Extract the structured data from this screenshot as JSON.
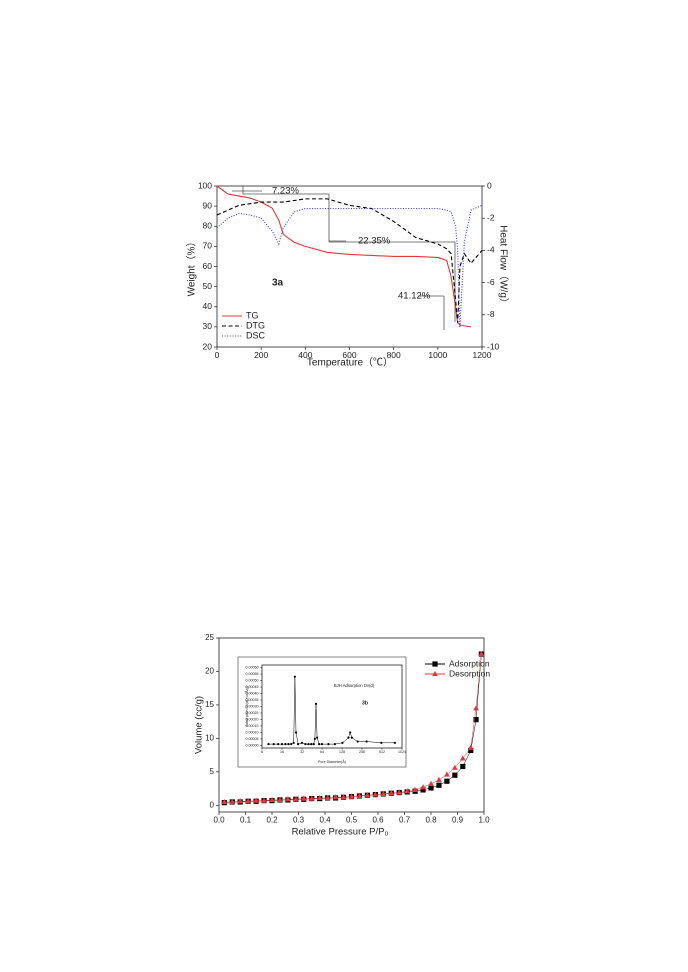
{
  "chart_data": [
    {
      "type": "line",
      "x_label": "Temperature（℃）",
      "y_label": "Weight（%）",
      "y2_label": "Heat Flow（W/g）",
      "panel_label": "3a",
      "annotations": [
        "7.23%",
        "22.35%",
        "41.12%"
      ],
      "xlim": [
        0,
        1200
      ],
      "xticks": [
        0,
        200,
        400,
        600,
        800,
        1000,
        1200
      ],
      "ylim": [
        20,
        100
      ],
      "yticks": [
        20,
        30,
        40,
        50,
        60,
        70,
        80,
        90,
        100
      ],
      "y2lim": [
        -10,
        0
      ],
      "y2ticks": [
        0,
        -2,
        -4,
        -6,
        -8,
        -10
      ],
      "legend": "lower left",
      "x": [
        0,
        50,
        100,
        150,
        200,
        250,
        280,
        300,
        350,
        400,
        500,
        600,
        700,
        800,
        900,
        1000,
        1040,
        1060,
        1080,
        1090,
        1100,
        1120,
        1150,
        1200
      ],
      "series": [
        {
          "name": "TG",
          "color": "#e8373a",
          "dash": "solid",
          "values": [
            100,
            96,
            95,
            94,
            92,
            89,
            83,
            76,
            72,
            70,
            67,
            66,
            65.5,
            65,
            65,
            64.5,
            63,
            55,
            40,
            32,
            31,
            30.5,
            30,
            null
          ]
        },
        {
          "name": "DTG",
          "color": "#000000",
          "dash": "dashed",
          "axis": "y2",
          "values": [
            -1.8,
            -1.5,
            -1.2,
            -1.1,
            -1.0,
            -1.0,
            -1.0,
            -1.0,
            -0.9,
            -0.8,
            -0.8,
            -1.2,
            -1.4,
            -2.2,
            -3.2,
            -3.6,
            -3.9,
            -4.2,
            -7,
            -8.5,
            -5,
            -4.2,
            -4.8,
            -4
          ]
        },
        {
          "name": "DSC",
          "color": "#3a3aff",
          "dash": "dotted",
          "axis": "y2",
          "values": [
            -2.6,
            -2.0,
            -1.7,
            -1.8,
            -2.0,
            -2.8,
            -3.6,
            -2.6,
            -1.6,
            -1.4,
            -1.4,
            -1.4,
            -1.4,
            -1.4,
            -1.4,
            -1.4,
            -1.5,
            -1.6,
            -2.5,
            -4,
            -8.8,
            -3.5,
            -1.5,
            -1.2
          ]
        }
      ]
    },
    {
      "type": "scatter",
      "x_label": "Relative Pressure  P/P₀",
      "y_label": "Volume (cc/g)",
      "xlim": [
        0,
        1
      ],
      "xticks": [
        {
          "value": 0,
          "label": "0.0"
        },
        0.1,
        0.2,
        0.3,
        0.4,
        0.5,
        0.6,
        0.7,
        0.8,
        0.9,
        {
          "value": 1,
          "label": "1.0"
        }
      ],
      "ylim": [
        -1,
        25
      ],
      "yticks": [
        0,
        5,
        10,
        15,
        20,
        25
      ],
      "legend": "upper right",
      "x": [
        0.02,
        0.05,
        0.08,
        0.11,
        0.14,
        0.17,
        0.2,
        0.23,
        0.26,
        0.29,
        0.32,
        0.35,
        0.38,
        0.41,
        0.44,
        0.47,
        0.5,
        0.53,
        0.56,
        0.59,
        0.62,
        0.65,
        0.68,
        0.71,
        0.74,
        0.77,
        0.8,
        0.83,
        0.86,
        0.89,
        0.92,
        0.95,
        0.97,
        0.99
      ],
      "series": [
        {
          "name": "Adsorption",
          "color": "#000000",
          "marker": "square",
          "values": [
            0.4,
            0.5,
            0.5,
            0.6,
            0.6,
            0.7,
            0.7,
            0.8,
            0.8,
            0.9,
            0.9,
            1.0,
            1.0,
            1.1,
            1.1,
            1.2,
            1.3,
            1.4,
            1.5,
            1.6,
            1.7,
            1.8,
            1.9,
            2.0,
            2.1,
            2.3,
            2.6,
            3.0,
            3.6,
            4.5,
            5.8,
            8.2,
            12.8,
            22.6
          ]
        },
        {
          "name": "Desorption",
          "color": "#e8373a",
          "marker": "triangle",
          "values": [
            0.5,
            0.5,
            0.6,
            0.6,
            0.7,
            0.7,
            0.8,
            0.8,
            0.9,
            0.9,
            1.0,
            1.0,
            1.1,
            1.1,
            1.2,
            1.2,
            1.3,
            1.4,
            1.5,
            1.6,
            1.7,
            1.8,
            1.9,
            2.1,
            2.3,
            2.7,
            3.2,
            3.8,
            4.6,
            5.6,
            7.0,
            8.6,
            14.5,
            22.6
          ]
        }
      ]
    },
    {
      "type": "line",
      "title": "BJH Adsorption Dv(d)",
      "panel_label": "3b",
      "x_label": "Pore Diameter(Å)",
      "y_label": "Adsorption Dv(d) (cc/Å/g)",
      "log_x": true,
      "xlim": [
        8,
        1024
      ],
      "xticks": [
        8,
        16,
        32,
        64,
        128,
        256,
        512,
        1024
      ],
      "ylim": [
        -2e-05,
        0.00062
      ],
      "yticks": [
        {
          "value": 0,
          "label": "0.00000"
        },
        {
          "value": 5e-05,
          "label": "0.00005"
        },
        {
          "value": 0.0001,
          "label": "0.00010"
        },
        {
          "value": 0.00015,
          "label": "0.00015"
        },
        {
          "value": 0.0002,
          "label": "0.00020"
        },
        {
          "value": 0.00025,
          "label": "0.00025"
        },
        {
          "value": 0.0003,
          "label": "0.00030"
        },
        {
          "value": 0.00035,
          "label": "0.00035"
        },
        {
          "value": 0.0004,
          "label": "0.00040"
        },
        {
          "value": 0.00045,
          "label": "0.00045"
        },
        {
          "value": 0.0005,
          "label": "0.00050"
        },
        {
          "value": 0.00055,
          "label": "0.00055"
        },
        {
          "value": 0.0006,
          "label": "0.00060"
        }
      ],
      "x": [
        10,
        12,
        14,
        16,
        18,
        20,
        22,
        24,
        25,
        26,
        28,
        32,
        36,
        40,
        44,
        48,
        50,
        52,
        54,
        58,
        64,
        80,
        100,
        130,
        160,
        170,
        180,
        220,
        300,
        500,
        800
      ],
      "series": [
        {
          "color": "#000000",
          "marker": "circle",
          "values": [
            1e-05,
            1e-05,
            1e-05,
            1e-05,
            1e-05,
            1e-05,
            1e-05,
            2e-05,
            0.00053,
            0.0001,
            1e-05,
            2e-05,
            1e-05,
            1e-05,
            1e-05,
            1e-05,
            5e-05,
            0.00032,
            6e-05,
            1e-05,
            1e-05,
            1e-05,
            1e-05,
            2e-05,
            6e-05,
            0.0001,
            6e-05,
            3e-05,
            3e-05,
            2e-05,
            2e-05
          ]
        }
      ]
    }
  ]
}
